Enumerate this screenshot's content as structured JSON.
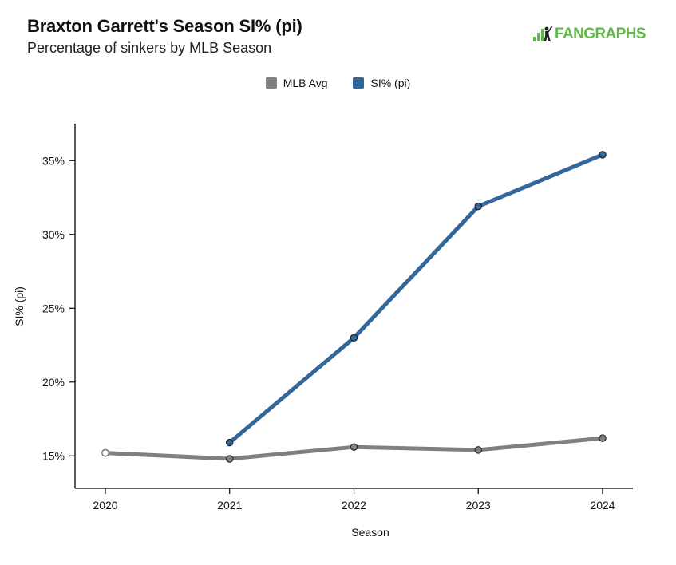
{
  "header": {
    "title": "Braxton Garrett's Season SI% (pi)",
    "subtitle": "Percentage of sinkers by MLB Season",
    "logo_text": "FANGRAPHS"
  },
  "colors": {
    "mlb_avg": "#808080",
    "player": "#336699",
    "logo_green": "#5fb947"
  },
  "chart_data": {
    "type": "line",
    "xlabel": "Season",
    "ylabel": "SI% (pi)",
    "categories": [
      "2020",
      "2021",
      "2022",
      "2023",
      "2024"
    ],
    "ylim": [
      12.8,
      37.5
    ],
    "yticks": [
      15,
      20,
      25,
      30,
      35
    ],
    "ytick_labels": [
      "15%",
      "20%",
      "25%",
      "30%",
      "35%"
    ],
    "grid": false,
    "legend_position": "top-center",
    "series": [
      {
        "name": "MLB Avg",
        "color": "#808080",
        "values": [
          15.2,
          14.8,
          15.6,
          15.4,
          16.2
        ]
      },
      {
        "name": "SI% (pi)",
        "color": "#336699",
        "values": [
          null,
          15.9,
          23.0,
          31.9,
          35.4
        ]
      }
    ]
  }
}
